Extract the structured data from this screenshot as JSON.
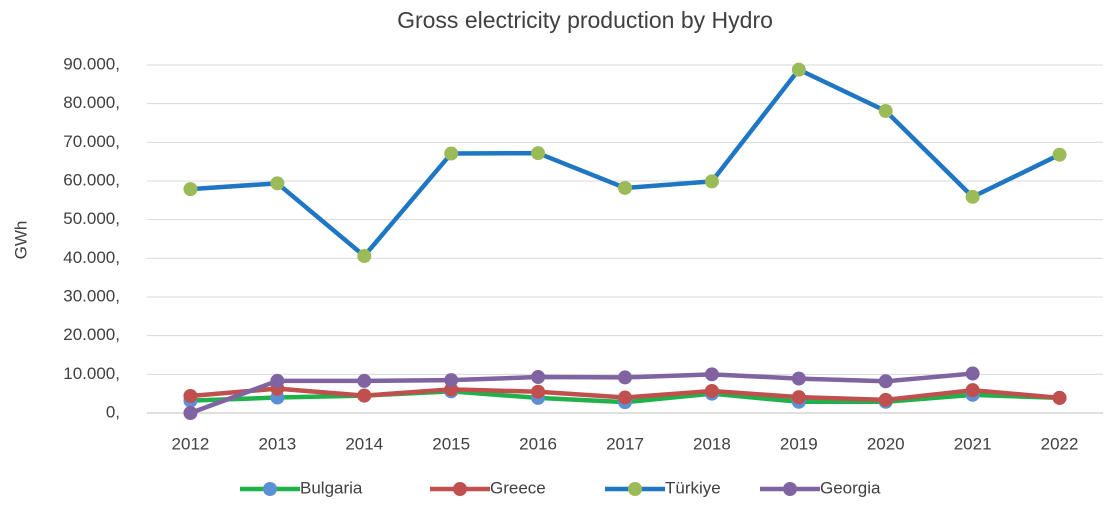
{
  "chart_data": {
    "type": "line",
    "title": "Gross electricity production by Hydro",
    "y_label": "GWh",
    "categories": [
      "2012",
      "2013",
      "2014",
      "2015",
      "2016",
      "2017",
      "2018",
      "2019",
      "2020",
      "2021",
      "2022"
    ],
    "series": [
      {
        "name": "Bulgaria",
        "color": "#1fb24a",
        "marker_color": "#5b8fd6",
        "values": [
          3200,
          4000,
          4500,
          5600,
          3900,
          2800,
          5000,
          2900,
          2900,
          4700,
          3900
        ]
      },
      {
        "name": "Greece",
        "color": "#c0504d",
        "marker_color": "#c0504d",
        "values": [
          4400,
          6300,
          4500,
          6100,
          5500,
          4000,
          5700,
          4100,
          3400,
          5900,
          3900
        ]
      },
      {
        "name": "Türkiye",
        "color": "#1f77c4",
        "marker_color": "#9bbb59",
        "values": [
          57900,
          59400,
          40600,
          67100,
          67200,
          58200,
          59900,
          88800,
          78100,
          55900,
          66800
        ]
      },
      {
        "name": "Georgia",
        "color": "#8064a2",
        "marker_color": "#8064a2",
        "values": [
          0,
          8300,
          8300,
          8500,
          9300,
          9200,
          10000,
          8900,
          8200,
          10200,
          null
        ]
      }
    ],
    "ylim": [
      0,
      90000
    ],
    "yticks": [
      {
        "value": 0,
        "label": "0,"
      },
      {
        "value": 10000,
        "label": "10.000,"
      },
      {
        "value": 20000,
        "label": "20.000,"
      },
      {
        "value": 30000,
        "label": "30.000,"
      },
      {
        "value": 40000,
        "label": "40.000,"
      },
      {
        "value": 50000,
        "label": "50.000,"
      },
      {
        "value": 60000,
        "label": "60.000,"
      },
      {
        "value": 70000,
        "label": "70.000,"
      },
      {
        "value": 80000,
        "label": "80.000,"
      },
      {
        "value": 90000,
        "label": "90.000,"
      }
    ],
    "grid": true,
    "legend": "bottom"
  }
}
